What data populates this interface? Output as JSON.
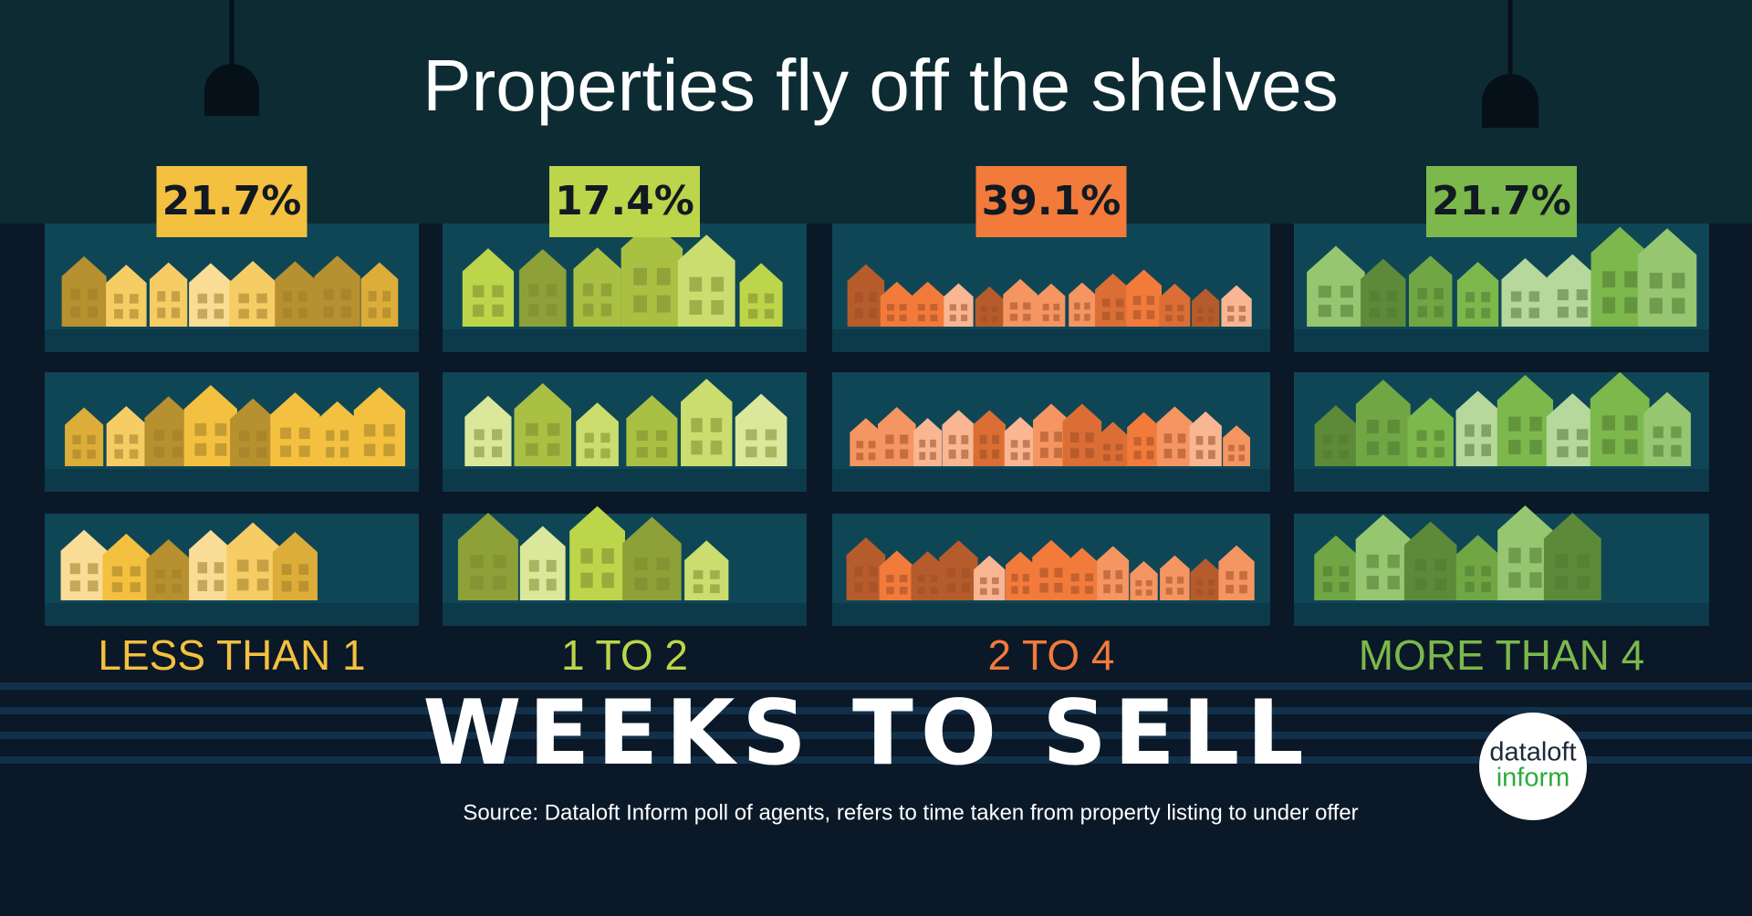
{
  "chart_data": {
    "type": "pictograph",
    "title": "Properties fly off the shelves",
    "categories": [
      "LESS THAN 1",
      "1 TO 2",
      "2 TO 4",
      "MORE THAN 4"
    ],
    "values": [
      21.7,
      17.4,
      39.1,
      21.7
    ],
    "value_labels": [
      "21.7%",
      "17.4%",
      "39.1%",
      "21.7%"
    ],
    "colors": [
      "#f4c03f",
      "#bdd54a",
      "#f27a3a",
      "#7cb84c"
    ],
    "x_label": "WEEKS TO SELL",
    "source": "Source: Dataloft Inform poll of agents, refers to time taken from property listing to under offer",
    "logo": {
      "line1": "dataloft",
      "line2": "inform"
    }
  }
}
